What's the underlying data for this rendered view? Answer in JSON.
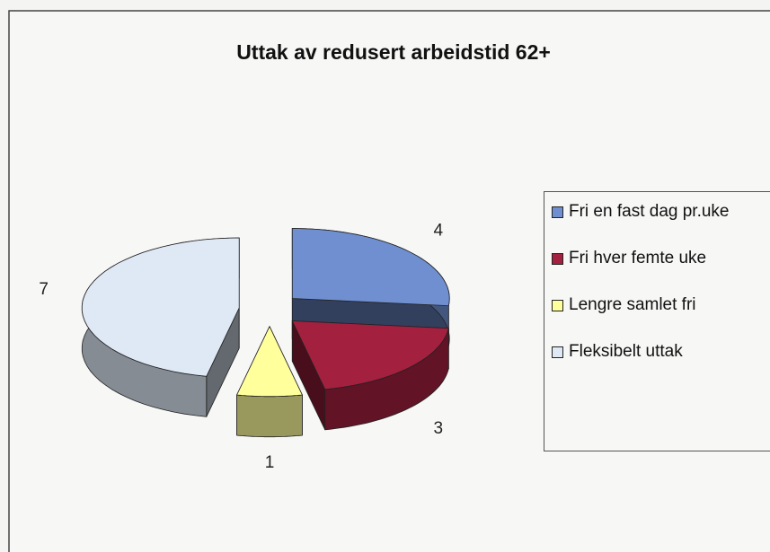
{
  "chart_data": {
    "type": "pie",
    "title": "Uttak av redusert arbeidstid 62+",
    "categories": [
      "Fri en fast dag pr.uke",
      "Fri hver femte uke",
      "Lengre samlet fri",
      "Fleksibelt uttak"
    ],
    "values": [
      4,
      3,
      1,
      7
    ],
    "colors": [
      "#6f8fd0",
      "#a3203f",
      "#ffff9c",
      "#dfe9f6"
    ],
    "legend": "right"
  }
}
